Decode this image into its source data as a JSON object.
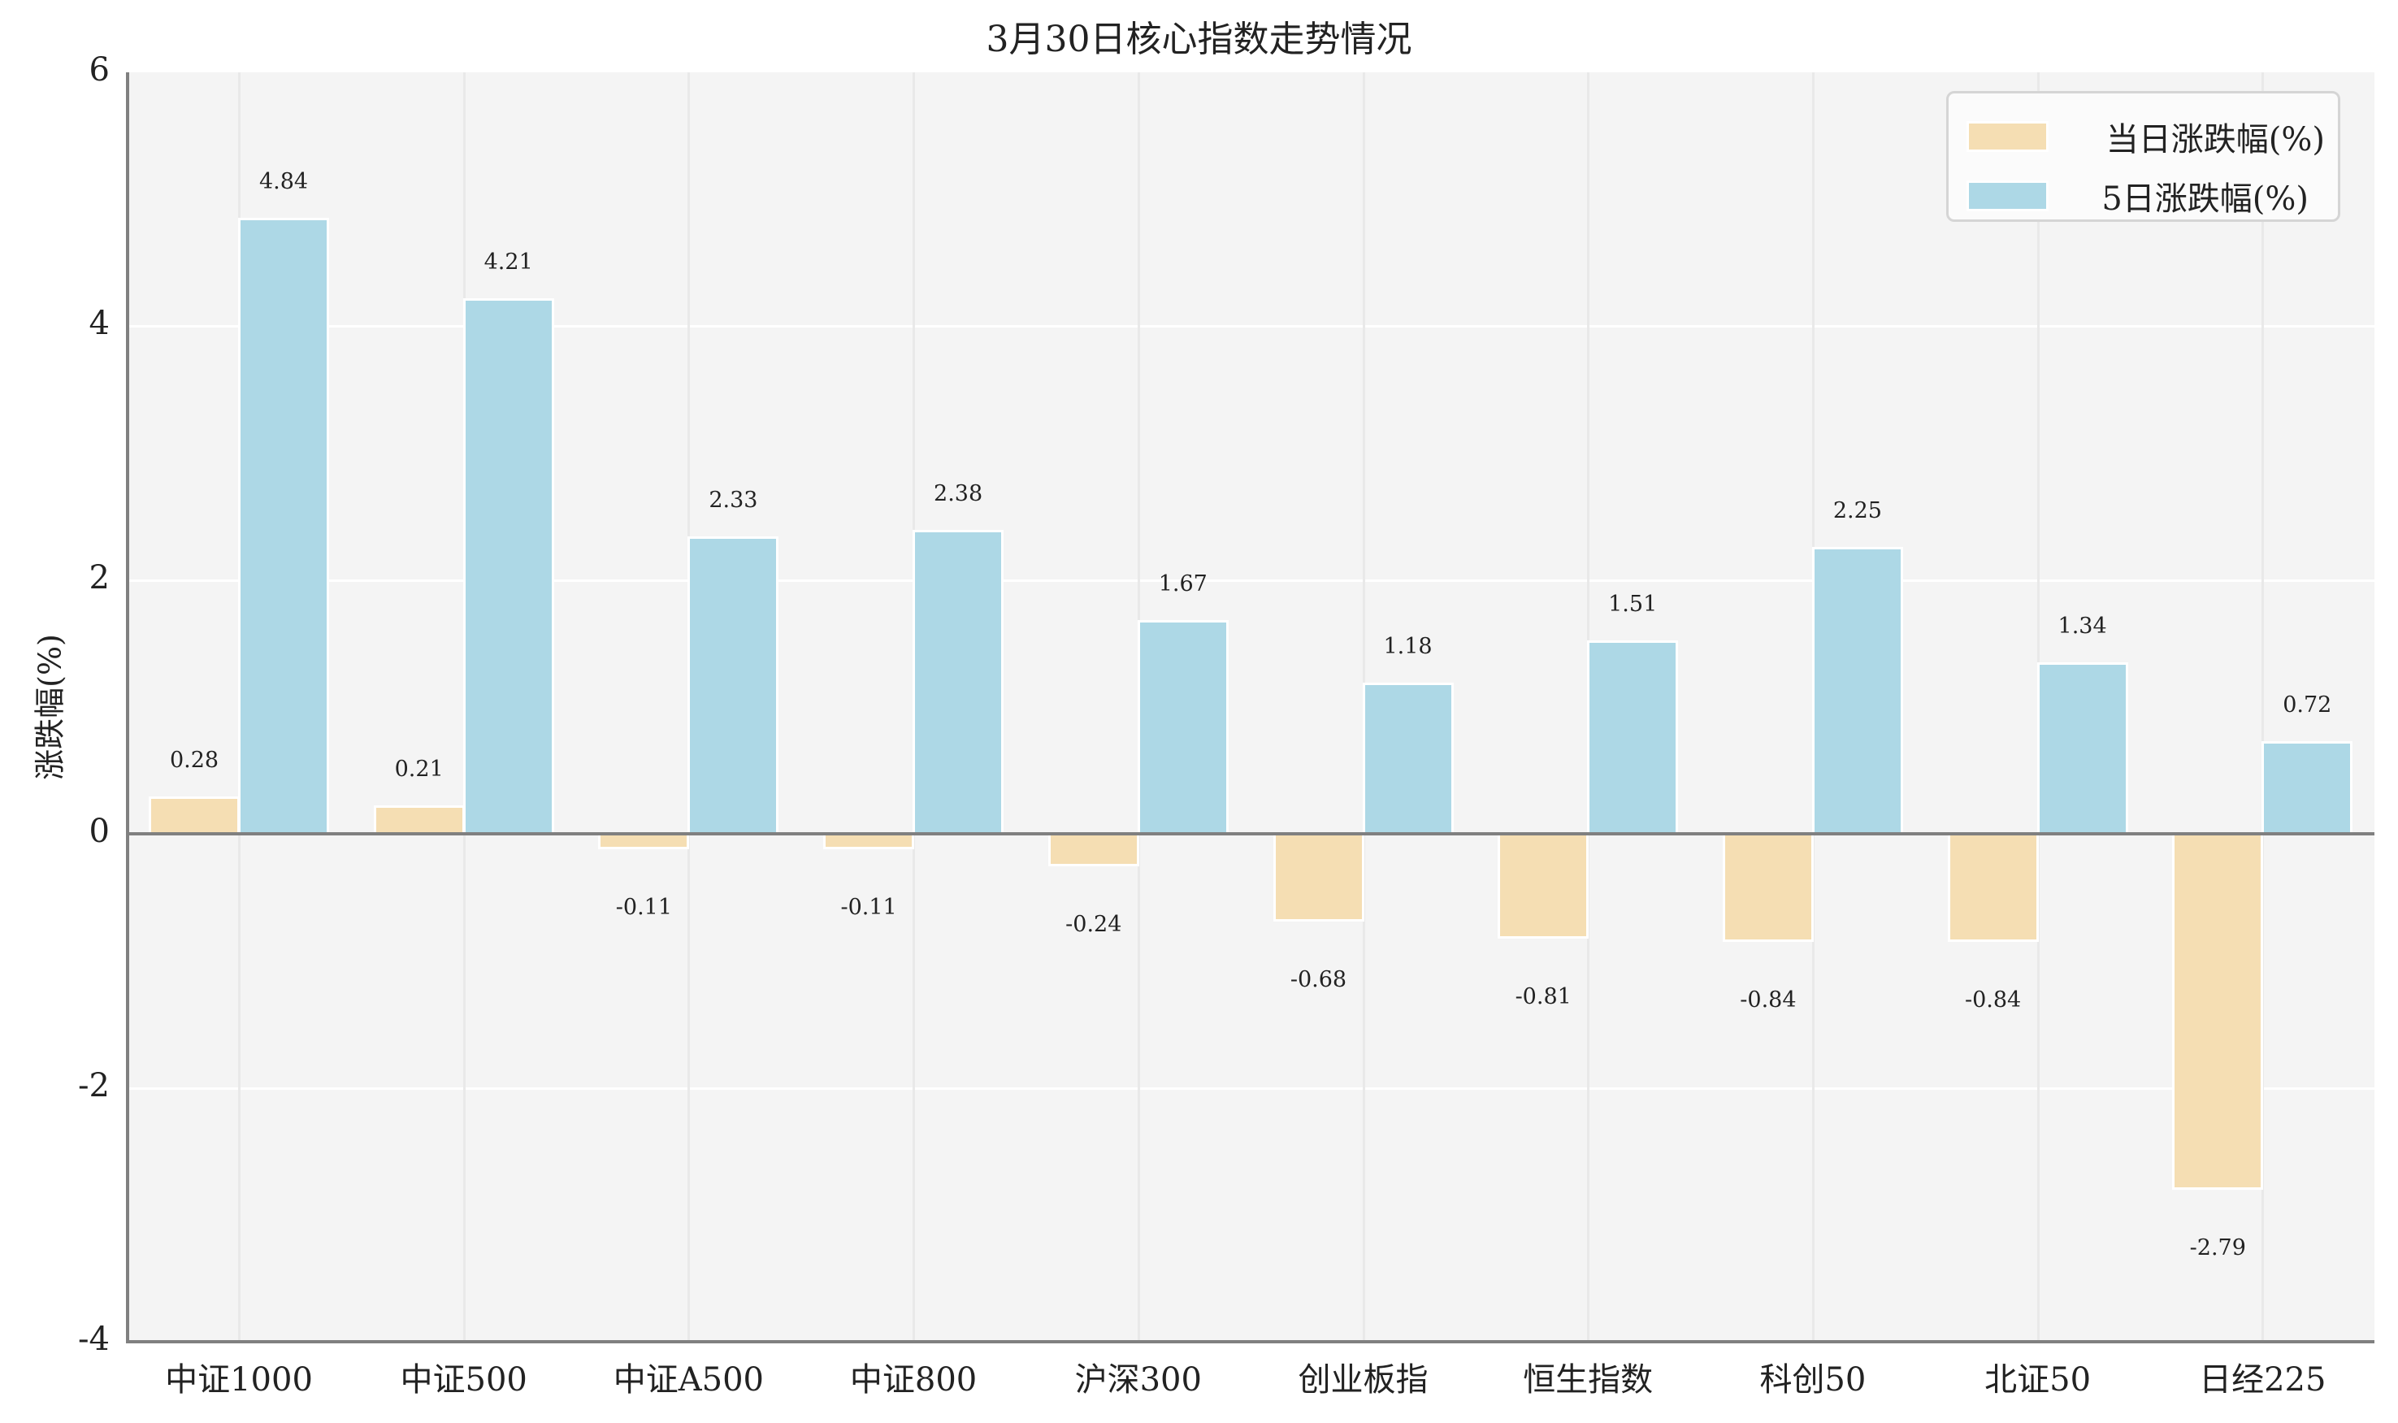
{
  "chart_data": {
    "type": "bar",
    "title": "3月30日核心指数走势情况",
    "xlabel": "",
    "ylabel": "涨跌幅(%)",
    "ylim": [
      -4,
      6
    ],
    "yticks": [
      "6",
      "4",
      "2",
      "0",
      "-2",
      "-4"
    ],
    "ytick_values": [
      6,
      4,
      2,
      0,
      -2,
      -4
    ],
    "grid": true,
    "legend_position": "upper right",
    "categories": [
      "中证1000",
      "中证500",
      "中证A500",
      "中证800",
      "沪深300",
      "创业板指",
      "恒生指数",
      "科创50",
      "北证50",
      "日经225"
    ],
    "series": [
      {
        "name": "当日涨跌幅(%)",
        "color": "#F5DEB3",
        "values": [
          0.28,
          0.21,
          -0.11,
          -0.11,
          -0.24,
          -0.68,
          -0.81,
          -0.84,
          -0.84,
          -2.79
        ],
        "labels": [
          "0.28",
          "0.21",
          "-0.11",
          "-0.11",
          "-0.24",
          "-0.68",
          "-0.81",
          "-0.84",
          "-0.84",
          "-2.79"
        ]
      },
      {
        "name": "5日涨跌幅(%)",
        "color": "#ADD8E6",
        "values": [
          4.84,
          4.21,
          2.33,
          2.38,
          1.67,
          1.18,
          1.51,
          2.25,
          1.34,
          0.72
        ],
        "labels": [
          "4.84",
          "4.21",
          "2.33",
          "2.38",
          "1.67",
          "1.18",
          "1.51",
          "2.25",
          "1.34",
          "0.72"
        ]
      }
    ]
  },
  "colors": {
    "plot_background": "#F4F4F4",
    "axis": "#808080",
    "daily": "#F5DEB3",
    "five_day": "#ADD8E6"
  }
}
